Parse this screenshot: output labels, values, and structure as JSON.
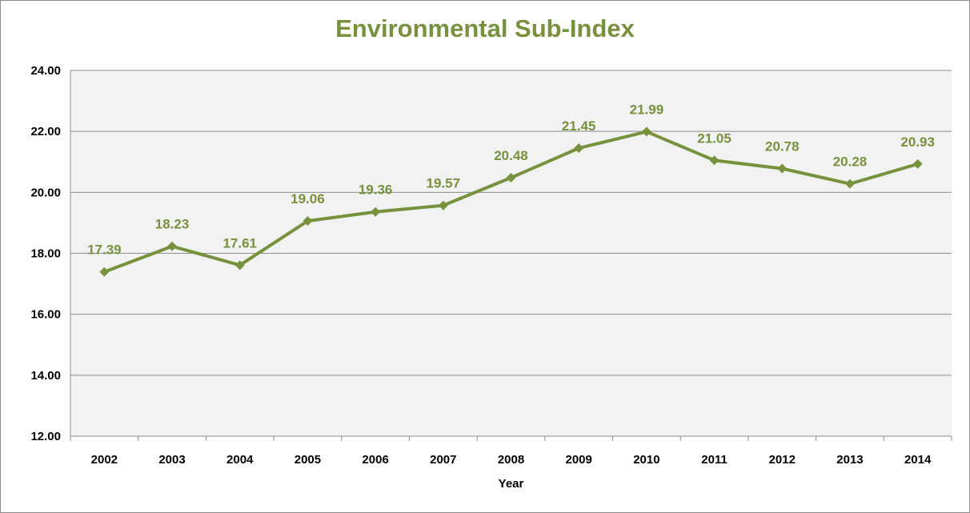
{
  "chart_data": {
    "type": "line",
    "title": "Environmental Sub-Index",
    "xlabel": "Year",
    "ylabel": "",
    "categories": [
      "2002",
      "2003",
      "2004",
      "2005",
      "2006",
      "2007",
      "2008",
      "2009",
      "2010",
      "2011",
      "2012",
      "2013",
      "2014"
    ],
    "series": [
      {
        "values": [
          17.39,
          18.23,
          17.61,
          19.06,
          19.36,
          19.57,
          20.48,
          21.45,
          21.99,
          21.05,
          20.78,
          20.28,
          20.93
        ],
        "labels": [
          "17.39",
          "18.23",
          "17.61",
          "19.06",
          "19.36",
          "19.57",
          "20.48",
          "21.45",
          "21.99",
          "21.05",
          "20.78",
          "20.28",
          "20.93"
        ]
      }
    ],
    "ylim": [
      12,
      24
    ],
    "yticks": [
      "12.00",
      "14.00",
      "16.00",
      "18.00",
      "20.00",
      "22.00",
      "24.00"
    ],
    "grid": true,
    "legend": "none",
    "colors": {
      "line": "#76923c",
      "title": "#76923c",
      "plot_background": "#f2f2f2",
      "gridline": "#8c8c8c"
    }
  }
}
